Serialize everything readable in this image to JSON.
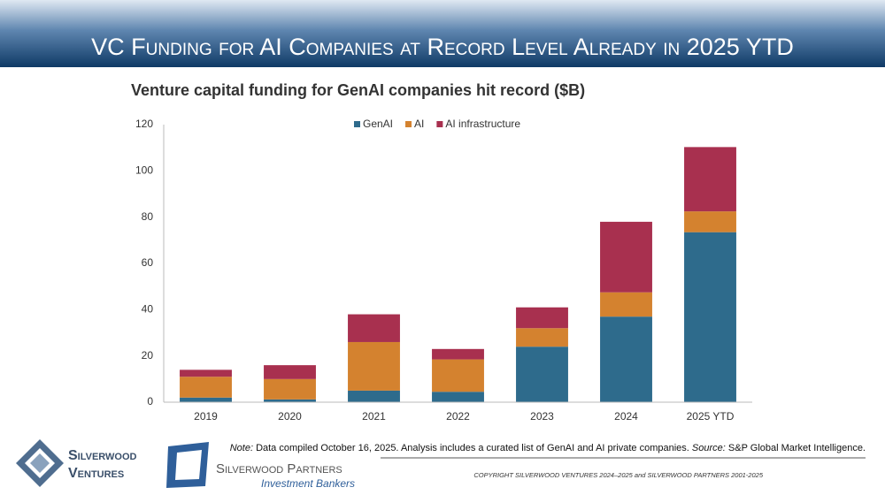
{
  "header": {
    "title": "VC Funding for AI Companies at Record Level Already in 2025 YTD"
  },
  "chart_data": {
    "type": "stacked_bar",
    "title": "Venture capital funding for GenAI companies hit record ($B)",
    "categories": [
      "2019",
      "2020",
      "2021",
      "2022",
      "2023",
      "2024",
      "2025 YTD"
    ],
    "series": [
      {
        "name": "GenAI",
        "color": "#2e6b8c",
        "values": [
          2,
          1.2,
          5,
          4.5,
          24,
          37,
          73.5
        ]
      },
      {
        "name": "AI",
        "color": "#d4822f",
        "values": [
          9,
          8.8,
          21,
          14,
          8,
          10.5,
          9
        ]
      },
      {
        "name": "AI infrastructure",
        "color": "#a8304f",
        "values": [
          3,
          6,
          12,
          4.5,
          9,
          30.5,
          27.8
        ]
      }
    ],
    "ylim": [
      0,
      120
    ],
    "yticks": [
      0,
      20,
      40,
      60,
      80,
      100,
      120
    ],
    "grid": false,
    "legend": "top"
  },
  "note": {
    "label": "Note:",
    "text": "Data compiled October 16, 2025.  Analysis includes a curated list of GenAI and AI private companies.",
    "source_label": "Source:",
    "source": "S&P Global Market Intelligence."
  },
  "logos": {
    "ventures_line1": "Silverwood",
    "ventures_line2": "Ventures",
    "partners": "Silverwood Partners",
    "partners_sub": "Investment Bankers"
  },
  "copyright": "COPYRIGHT SILVERWOOD VENTURES 2024–2025 and SILVERWOOD PARTNERS 2001-2025"
}
